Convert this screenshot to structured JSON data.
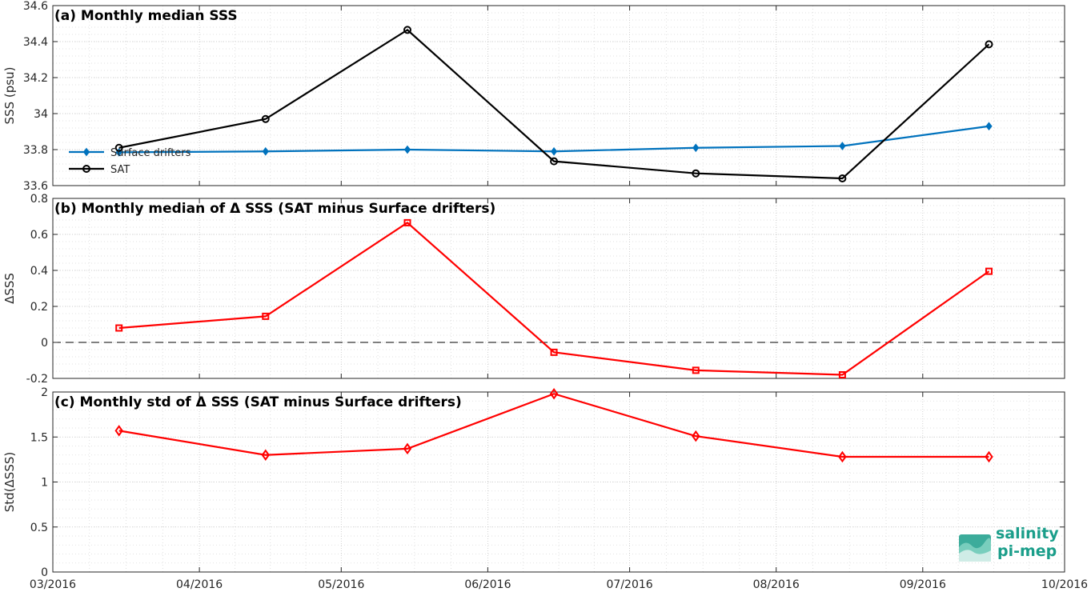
{
  "chart_data": [
    {
      "type": "line",
      "title": "(a) Monthly median SSS",
      "ylabel": "SSS (psu)",
      "xlabel": "",
      "ylim": [
        33.6,
        34.6
      ],
      "yticks": [
        33.6,
        33.8,
        34,
        34.2,
        34.4,
        34.6
      ],
      "ytick_labels": [
        "33.6",
        "33.8",
        "34",
        "34.2",
        "34.4",
        "34.6"
      ],
      "x": [
        "2016-03-15",
        "2016-04-15",
        "2016-05-15",
        "2016-06-15",
        "2016-07-15",
        "2016-08-15",
        "2016-09-15"
      ],
      "series": [
        {
          "name": "Surface drifters",
          "color": "#0072bd",
          "marker": "diamond-filled",
          "values": [
            33.785,
            33.79,
            33.8,
            33.79,
            33.81,
            33.82,
            33.93
          ]
        },
        {
          "name": "SAT",
          "color": "#000000",
          "marker": "circle-open",
          "values": [
            33.81,
            33.97,
            34.465,
            33.735,
            33.668,
            33.64,
            34.385
          ]
        }
      ],
      "legend": "left",
      "grid": true
    },
    {
      "type": "line",
      "title": "(b) Monthly median of Δ SSS (SAT minus Surface drifters)",
      "ylabel": "ΔSSS",
      "xlabel": "",
      "ylim": [
        -0.2,
        0.8
      ],
      "yticks": [
        -0.2,
        0,
        0.2,
        0.4,
        0.6,
        0.8
      ],
      "ytick_labels": [
        "-0.2",
        "0",
        "0.2",
        "0.4",
        "0.6",
        "0.8"
      ],
      "reference_line": 0,
      "x": [
        "2016-03-15",
        "2016-04-15",
        "2016-05-15",
        "2016-06-15",
        "2016-07-15",
        "2016-08-15",
        "2016-09-15"
      ],
      "series": [
        {
          "color": "#ff0000",
          "marker": "square-open",
          "values": [
            0.08,
            0.145,
            0.665,
            -0.055,
            -0.155,
            -0.18,
            0.395
          ]
        }
      ],
      "grid": true
    },
    {
      "type": "line",
      "title": "(c) Monthly std of Δ SSS (SAT minus Surface drifters)",
      "ylabel": "Std(ΔSSS)",
      "xlabel": "",
      "ylim": [
        0,
        2
      ],
      "yticks": [
        0,
        0.5,
        1,
        1.5,
        2
      ],
      "ytick_labels": [
        "0",
        "0.5",
        "1",
        "1.5",
        "2"
      ],
      "x": [
        "2016-03-15",
        "2016-04-15",
        "2016-05-15",
        "2016-06-15",
        "2016-07-15",
        "2016-08-15",
        "2016-09-15"
      ],
      "series": [
        {
          "color": "#ff0000",
          "marker": "diamond-open",
          "values": [
            1.57,
            1.3,
            1.37,
            1.98,
            1.51,
            1.28,
            1.28
          ]
        }
      ],
      "xlim": [
        "2016-03-01",
        "2016-10-01"
      ],
      "xticks": [
        "03/2016",
        "04/2016",
        "05/2016",
        "06/2016",
        "07/2016",
        "08/2016",
        "09/2016",
        "10/2016"
      ],
      "grid": true
    }
  ],
  "logo": {
    "line1": "salinity",
    "line2": "pi-mep",
    "color": "#1a9e8a",
    "icon": "salinity-wave-logo-icon"
  }
}
